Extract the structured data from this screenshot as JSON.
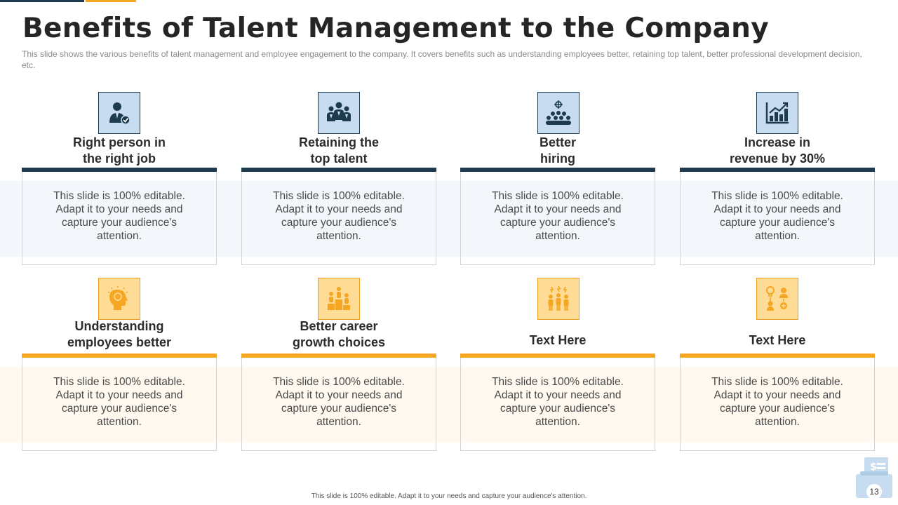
{
  "title": "Benefits of Talent Management to the Company",
  "subtitle": "This slide shows the various  benefits of talent management  and employee engagement  to the company.  It covers  benefits such as understanding  employees better,  retaining top talent,  better professional development  decision, etc.",
  "colors": {
    "navy": "#1e3a4f",
    "orange": "#f5a623",
    "light_blue": "#c8dcef",
    "light_orange": "#ffdc95"
  },
  "cards": [
    {
      "title_line1": "Right person in",
      "title_line2": "the right job",
      "body": "This slide is 100% editable. Adapt it to your needs and capture your audience's attention.",
      "icon": "person-check-icon"
    },
    {
      "title_line1": "Retaining the",
      "title_line2": "top talent",
      "body": "This slide is 100% editable. Adapt it to your needs and capture your audience's attention.",
      "icon": "team-icon"
    },
    {
      "title_line1": "Better",
      "title_line2": "hiring",
      "body": "This slide is 100% editable. Adapt it to your needs and capture your audience's attention.",
      "icon": "target-group-icon"
    },
    {
      "title_line1": "Increase in",
      "title_line2": "revenue by 30%",
      "body": "This slide is 100% editable. Adapt it to your needs and capture your audience's attention.",
      "icon": "growth-chart-icon"
    },
    {
      "title_line1": "Understanding",
      "title_line2": "employees better",
      "body": "This slide is 100% editable. Adapt it to your needs and capture your audience's attention.",
      "icon": "head-idea-icon"
    },
    {
      "title_line1": "Better career",
      "title_line2": "growth choices",
      "body": "This slide is 100% editable. Adapt it to your needs and capture your audience's attention.",
      "icon": "podium-icon"
    },
    {
      "title_line1": "Text Here",
      "title_line2": "",
      "body": "This slide is 100% editable. Adapt it to your needs and capture your audience's attention.",
      "icon": "people-ideas-icon"
    },
    {
      "title_line1": "Text Here",
      "title_line2": "",
      "body": "This slide is 100% editable. Adapt it to your needs and capture your audience's attention.",
      "icon": "career-path-icon"
    }
  ],
  "footer": "This slide is 100% editable.  Adapt it to your needs and capture your audience's attention.",
  "page_number": "13"
}
